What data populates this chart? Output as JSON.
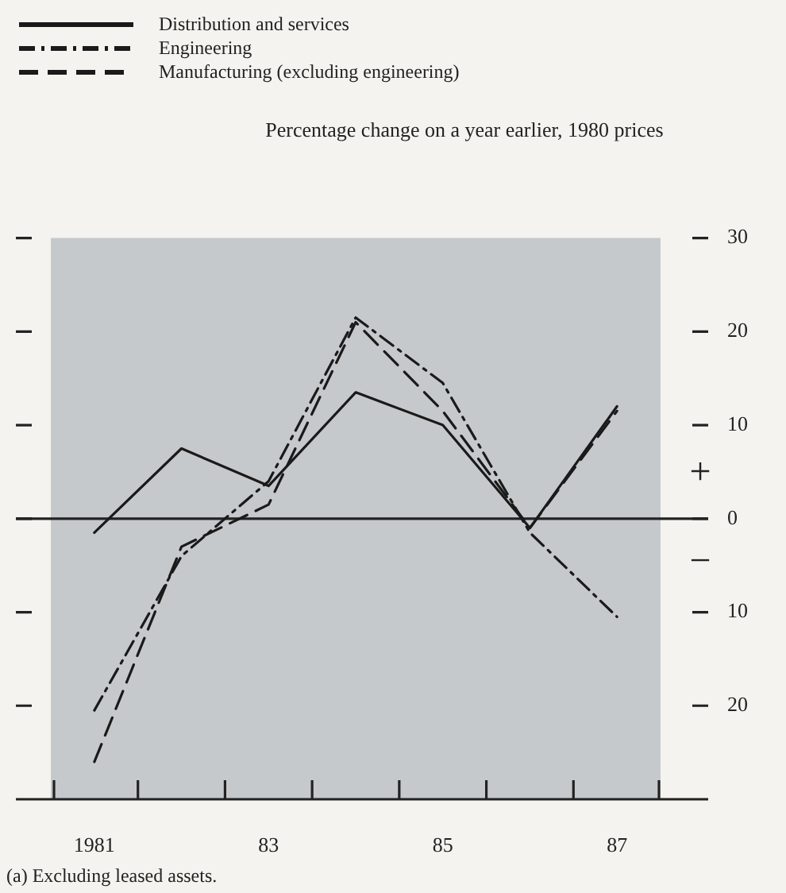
{
  "chart_data": {
    "type": "line",
    "title": "Percentage change on a year earlier, 1980 prices",
    "categories": [
      "1981",
      null,
      "83",
      null,
      "85",
      null,
      "87"
    ],
    "series": [
      {
        "name": "Distribution and services",
        "color": "#1a1a1a",
        "line_style": "solid",
        "values": [
          -1.5,
          7.5,
          3.5,
          13.5,
          10,
          -1,
          12
        ]
      },
      {
        "name": "Engineering",
        "color": "#1a1a1a",
        "line_style": "dashdot",
        "values": [
          -20.5,
          -4,
          4,
          21.5,
          14.5,
          -1.5,
          -10.5
        ]
      },
      {
        "name": "Manufacturing (excluding engineering)",
        "color": "#1a1a1a",
        "line_style": "dashed",
        "values": [
          -26,
          -3,
          1.5,
          21,
          11.5,
          -1,
          11.5
        ]
      }
    ],
    "ylim": [
      -30,
      30
    ],
    "yticks": [
      {
        "value": -20,
        "label": "20"
      },
      {
        "value": -10,
        "label": "10"
      },
      0,
      10,
      20,
      30
    ],
    "ref_lines": [
      {
        "axis": "y",
        "value": 0
      }
    ],
    "annotations": [
      "+",
      "−",
      "(a) Excluding leased assets."
    ],
    "legend": "top left",
    "marker": "none",
    "grid": false
  }
}
